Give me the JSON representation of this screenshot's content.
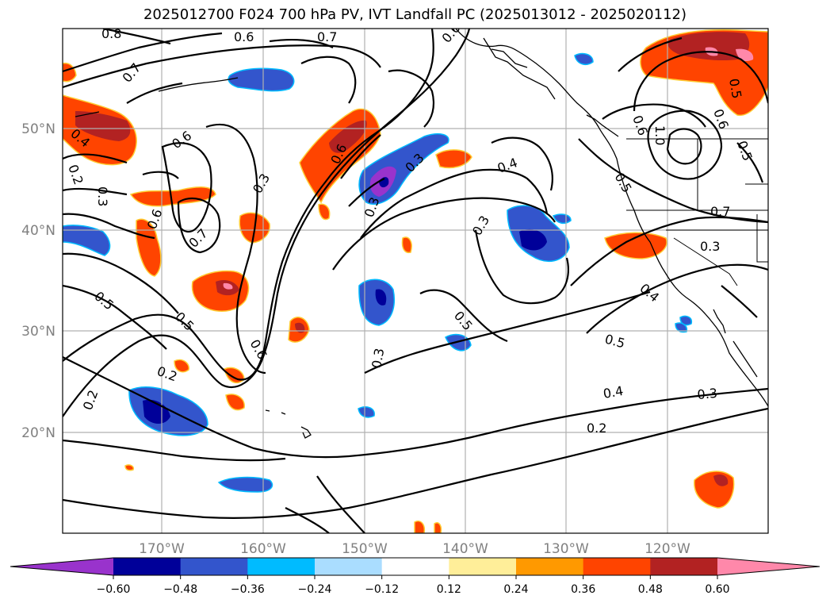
{
  "title": "2025012700 F024 700 hPa PV, IVT Landfall PC (2025013012 - 2025020112)",
  "map": {
    "lon_labels": [
      "170°W",
      "160°W",
      "150°W",
      "140°W",
      "130°W",
      "120°W"
    ],
    "lat_labels": [
      "50°N",
      "40°N",
      "30°N",
      "20°N"
    ],
    "gridline_color": "#b0b0b0",
    "coastline_color": "#000000"
  },
  "contour_labels": [
    "0.8",
    "0.7",
    "0.6",
    "0.7",
    "0.4",
    "0.2",
    "0.3",
    "0.6",
    "0.7",
    "0.6",
    "0.5",
    "0.5",
    "0.3",
    "0.6",
    "0.6",
    "0.2",
    "0.2",
    "0.6",
    "0.3",
    "0.3",
    "0.4",
    "0.3",
    "0.5",
    "0.3",
    "0.5",
    "0.4",
    "0.3",
    "0.2",
    "0.5",
    "1.0",
    "0.7",
    "0.3",
    "0.4",
    "0.5",
    "0.6",
    "0.5",
    "0.6"
  ],
  "colorbar": {
    "ticks": [
      "−0.60",
      "−0.48",
      "−0.36",
      "−0.24",
      "−0.12",
      "0.12",
      "0.24",
      "0.36",
      "0.48",
      "0.60"
    ],
    "colors": [
      "#9933cc",
      "#000099",
      "#3355cc",
      "#00bbff",
      "#aaddff",
      "#ffffff",
      "#ffee99",
      "#ff9900",
      "#ff4400",
      "#b22222",
      "#ff88aa"
    ]
  }
}
